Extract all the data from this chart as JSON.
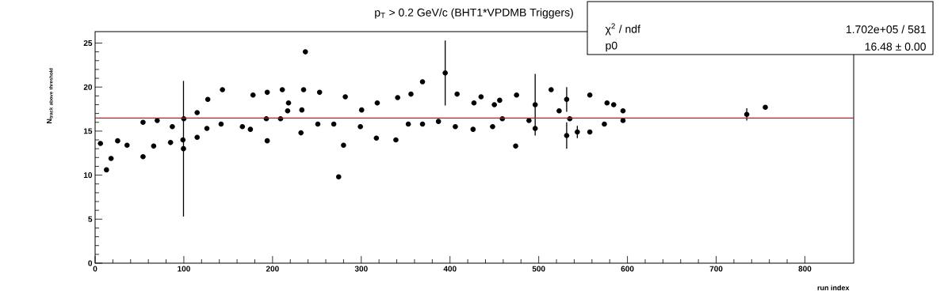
{
  "chart_data": {
    "type": "scatter",
    "title": "p$_{T}$ > 0.2 GeV/c (BHT1*VPDMB Triggers)",
    "xlabel": "run index",
    "ylabel": "\\mathbf{N_{track\\ above\\ threshold}}",
    "x": [
      6,
      12.8,
      18,
      25.4,
      36,
      54,
      54,
      66,
      70,
      85,
      87,
      99,
      99.6,
      100,
      115,
      115,
      126,
      127,
      142,
      143.5,
      166,
      175,
      178,
      193,
      194,
      194,
      209,
      211,
      217,
      218,
      232,
      233,
      235,
      237,
      251,
      253,
      269,
      274.5,
      280,
      282,
      299,
      300.4,
      317,
      318,
      339,
      341,
      353,
      356,
      369,
      369,
      387,
      394.6,
      406,
      408,
      426,
      427,
      435,
      448,
      450,
      456,
      459,
      474,
      475,
      489,
      496,
      496,
      514,
      523,
      531.5,
      531.5,
      535,
      543.5,
      557.6,
      557.6,
      574,
      577,
      584.5,
      595,
      595,
      734.5,
      755.4
    ],
    "values": [
      13.6,
      10.6,
      11.9,
      13.9,
      13.4,
      12.1,
      16.0,
      13.3,
      16.2,
      13.7,
      15.5,
      14.0,
      13.0,
      16.4,
      14.3,
      17.1,
      15.3,
      18.6,
      15.8,
      19.7,
      15.5,
      15.2,
      19.1,
      16.4,
      13.9,
      19.4,
      16.4,
      19.7,
      17.3,
      18.2,
      14.8,
      17.4,
      19.7,
      24.0,
      15.8,
      19.4,
      15.8,
      9.8,
      13.4,
      18.9,
      15.5,
      17.4,
      14.2,
      18.2,
      14.0,
      18.8,
      15.8,
      19.2,
      15.8,
      20.6,
      16.1,
      21.6,
      15.5,
      19.2,
      15.2,
      18.2,
      18.9,
      15.5,
      18.0,
      18.5,
      16.4,
      13.3,
      19.1,
      16.2,
      15.3,
      18.0,
      19.7,
      17.3,
      18.6,
      14.5,
      16.4,
      14.9,
      14.9,
      19.1,
      15.8,
      18.2,
      18.0,
      16.2,
      17.3,
      16.9,
      17.7
    ],
    "errors": [
      null,
      null,
      null,
      null,
      null,
      null,
      null,
      null,
      null,
      null,
      null,
      null,
      7.7,
      null,
      null,
      null,
      null,
      null,
      null,
      null,
      null,
      null,
      null,
      null,
      null,
      null,
      null,
      null,
      null,
      null,
      null,
      null,
      null,
      null,
      null,
      null,
      null,
      null,
      null,
      null,
      null,
      null,
      null,
      null,
      null,
      null,
      null,
      null,
      null,
      null,
      null,
      3.7,
      null,
      null,
      null,
      null,
      null,
      null,
      null,
      null,
      null,
      null,
      null,
      null,
      null,
      3.5,
      null,
      null,
      1.4,
      1.5,
      null,
      0.7,
      null,
      null,
      null,
      null,
      null,
      null,
      null,
      0.7,
      null
    ],
    "color": "#000000",
    "marker": "circle",
    "xlim": [
      0,
      855
    ],
    "ylim": [
      0,
      26.3
    ],
    "xticks": [
      0,
      100,
      200,
      300,
      400,
      500,
      600,
      700,
      800
    ],
    "yticks": [
      0,
      5,
      10,
      15,
      20,
      25
    ],
    "ref_lines": [
      {
        "axis": "y",
        "value": 16.48,
        "color": "#ff0000"
      }
    ],
    "annotations": [
      "χ$^{2}$ / ndf",
      "1.702e+05 / 581",
      "p0",
      "16.48 ± 0.00"
    ]
  }
}
